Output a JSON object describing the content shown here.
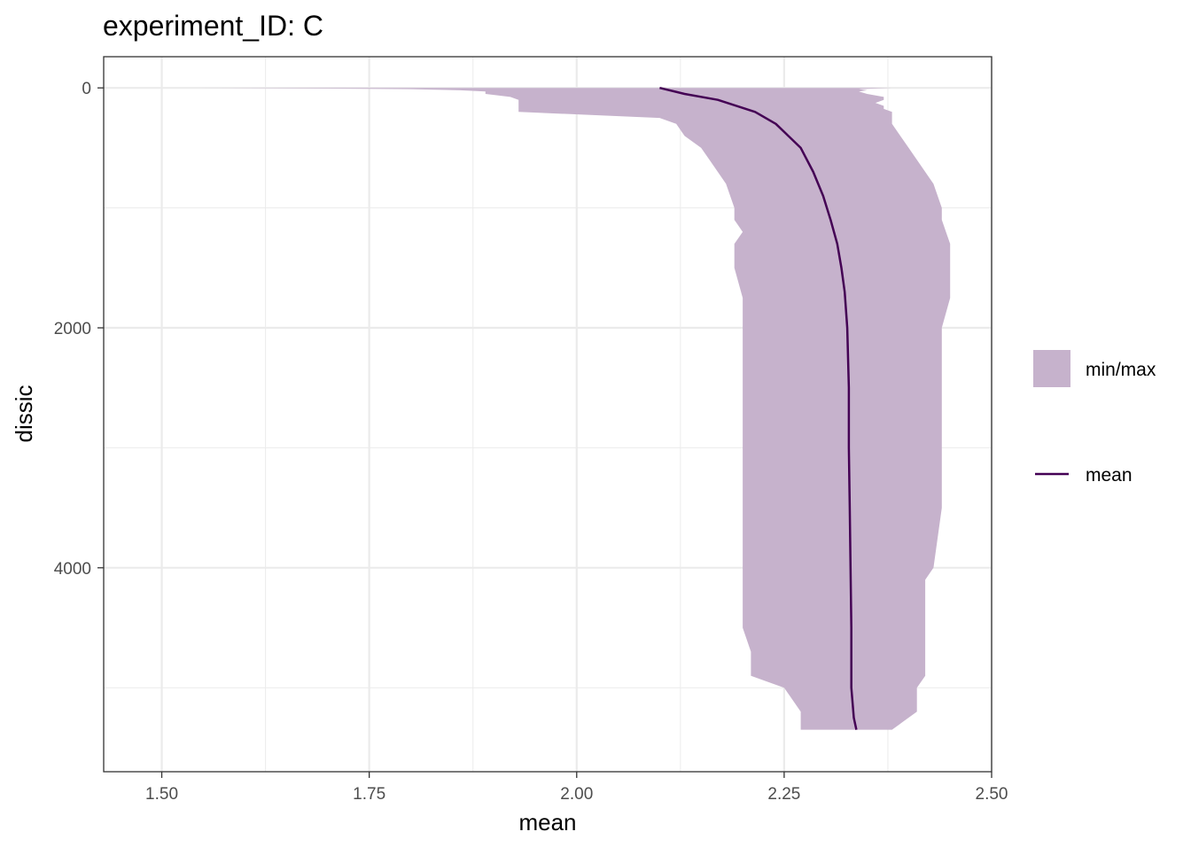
{
  "chart_data": {
    "type": "area",
    "title": "experiment_ID: C",
    "xlabel": "mean",
    "ylabel": "dissic",
    "xlim": [
      1.43,
      2.5
    ],
    "ylim": [
      5700,
      -260
    ],
    "y_reversed": true,
    "x_ticks": [
      1.5,
      1.75,
      2.0,
      2.25,
      2.5
    ],
    "x_tick_labels": [
      "1.50",
      "1.75",
      "2.00",
      "2.25",
      "2.50"
    ],
    "y_ticks": [
      0,
      2000,
      4000
    ],
    "y_tick_labels": [
      "0",
      "2000",
      "4000"
    ],
    "grid": true,
    "legend_position": "right",
    "colors": {
      "ribbon_fill": "#c6b2cc",
      "mean_line": "#440154",
      "grid": "#ebebeb",
      "panel_border": "#333333"
    },
    "series": [
      {
        "name": "min/max",
        "kind": "ribbon",
        "depth": [
          0,
          5,
          10,
          20,
          30,
          50,
          75,
          100,
          125,
          150,
          175,
          200,
          250,
          300,
          400,
          500,
          600,
          700,
          800,
          1000,
          1100,
          1200,
          1300,
          1400,
          1500,
          1750,
          2000,
          2500,
          3000,
          3500,
          4000,
          4100,
          4500,
          4700,
          4900,
          5000,
          5200,
          5350
        ],
        "min": [
          1.54,
          1.69,
          1.8,
          1.86,
          1.89,
          1.89,
          1.92,
          1.93,
          1.93,
          1.93,
          1.93,
          1.93,
          2.1,
          2.12,
          2.13,
          2.15,
          2.16,
          2.17,
          2.18,
          2.19,
          2.19,
          2.2,
          2.19,
          2.19,
          2.19,
          2.2,
          2.2,
          2.2,
          2.2,
          2.2,
          2.2,
          2.2,
          2.2,
          2.21,
          2.21,
          2.25,
          2.27,
          2.27
        ],
        "max": [
          2.38,
          2.36,
          2.34,
          2.35,
          2.34,
          2.35,
          2.37,
          2.37,
          2.36,
          2.37,
          2.37,
          2.38,
          2.38,
          2.38,
          2.39,
          2.4,
          2.41,
          2.42,
          2.43,
          2.44,
          2.44,
          2.445,
          2.45,
          2.45,
          2.45,
          2.45,
          2.44,
          2.44,
          2.44,
          2.44,
          2.43,
          2.42,
          2.42,
          2.42,
          2.42,
          2.41,
          2.41,
          2.38
        ]
      },
      {
        "name": "mean",
        "kind": "line",
        "depth": [
          0,
          50,
          100,
          200,
          300,
          400,
          500,
          700,
          900,
          1100,
          1300,
          1500,
          1700,
          2000,
          2500,
          3000,
          3500,
          4000,
          4500,
          5000,
          5250,
          5350
        ],
        "values": [
          2.1,
          2.13,
          2.17,
          2.215,
          2.24,
          2.255,
          2.27,
          2.285,
          2.297,
          2.306,
          2.314,
          2.319,
          2.323,
          2.326,
          2.328,
          2.328,
          2.329,
          2.33,
          2.331,
          2.331,
          2.334,
          2.337
        ]
      }
    ]
  }
}
